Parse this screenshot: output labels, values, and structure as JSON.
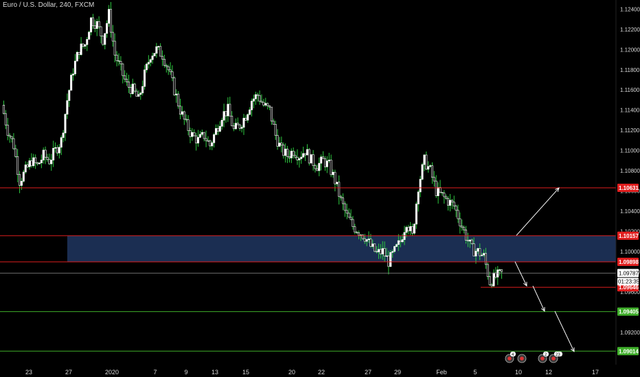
{
  "header": {
    "title": "Euro / U.S. Dollar, 240, FXCM"
  },
  "colors": {
    "background": "#000000",
    "candle": "#ffffff",
    "wick": "#2ecc40",
    "red_line": "#e01e1e",
    "green_line": "#3fae2a",
    "zone_fill": "#1b2e52",
    "axis_text": "#d9d9d9",
    "arrow": "#ffffff"
  },
  "chart_data": {
    "type": "candlestick",
    "title": "Euro / U.S. Dollar, 240, FXCM",
    "x_tick_labels": [
      "23",
      "27",
      "2020",
      "7",
      "9",
      "13",
      "15",
      "20",
      "22",
      "27",
      "29",
      "Feb",
      "5",
      "10",
      "12",
      "17"
    ],
    "y_tick_labels": [
      "1.12400",
      "1.12200",
      "1.12000",
      "1.11800",
      "1.11600",
      "1.11400",
      "1.11200",
      "1.11000",
      "1.10800",
      "1.10600",
      "1.10400",
      "1.10200",
      "1.10000",
      "1.09800",
      "1.09600",
      "1.09200"
    ],
    "ylim": [
      1.0888,
      1.1245
    ],
    "price_path": [
      1.1145,
      1.112,
      1.1105,
      1.107,
      1.108,
      1.109,
      1.1085,
      1.1095,
      1.109,
      1.11,
      1.111,
      1.115,
      1.118,
      1.12,
      1.1205,
      1.123,
      1.1225,
      1.121,
      1.1235,
      1.1195,
      1.118,
      1.1165,
      1.116,
      1.115,
      1.1175,
      1.1195,
      1.12,
      1.1195,
      1.118,
      1.116,
      1.114,
      1.1125,
      1.1115,
      1.111,
      1.1115,
      1.1105,
      1.112,
      1.1135,
      1.114,
      1.112,
      1.1125,
      1.1135,
      1.115,
      1.1155,
      1.1145,
      1.114,
      1.1115,
      1.11,
      1.1095,
      1.11,
      1.1095,
      1.11,
      1.109,
      1.1085,
      1.109,
      1.1085,
      1.107,
      1.105,
      1.1035,
      1.1025,
      1.102,
      1.1015,
      1.1005,
      1.0998,
      1.1,
      1.099,
      1.1,
      1.101,
      1.103,
      1.1015,
      1.1065,
      1.109,
      1.108,
      1.106,
      1.1055,
      1.105,
      1.1045,
      1.103,
      1.1015,
      1.1002,
      1.1,
      1.0995,
      1.097,
      1.0975,
      1.0978
    ],
    "levels": [
      {
        "price": 1.10631,
        "label": "1.10631",
        "color": "red"
      },
      {
        "price": 1.10157,
        "label": "1.10157",
        "color": "red"
      },
      {
        "price": 1.09898,
        "label": "1.09898",
        "color": "red"
      },
      {
        "price": 1.09646,
        "label": "1.09646",
        "color": "red"
      },
      {
        "price": 1.09405,
        "label": "1.09405",
        "color": "green"
      },
      {
        "price": 1.09014,
        "label": "1.09014",
        "color": "green"
      }
    ],
    "current_price": {
      "price": 1.09787,
      "label": "1.09787",
      "countdown": "01:23:35"
    },
    "zone": {
      "price_top": 1.10157,
      "price_bottom": 1.09898,
      "x_start_tick": "27"
    },
    "arrows": [
      {
        "direction": "up",
        "from_price": 1.1016,
        "to_price": 1.1063
      },
      {
        "direction": "down",
        "from_price": 1.099,
        "to_price": 1.0966
      },
      {
        "direction": "down",
        "from_price": 1.0966,
        "to_price": 1.0941
      },
      {
        "direction": "down",
        "from_price": 1.0941,
        "to_price": 1.0901
      }
    ],
    "event_badges": [
      {
        "text": "4"
      },
      {
        "text": ""
      },
      {
        "text": "2"
      },
      {
        "text": "23"
      }
    ],
    "grid": false
  }
}
